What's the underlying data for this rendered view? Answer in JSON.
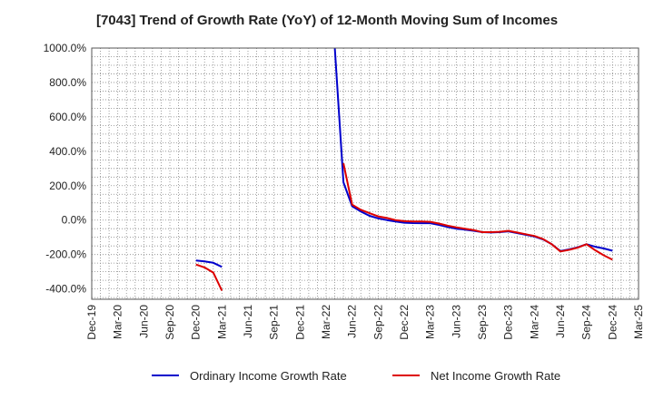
{
  "chart_data": {
    "type": "line",
    "title": "[7043]  Trend of Growth Rate (YoY) of 12-Month Moving Sum of Incomes",
    "xlabel": "",
    "ylabel": "",
    "ylim": [
      -460,
      1000
    ],
    "xlim": [
      "2019-12",
      "2025-03"
    ],
    "grid": true,
    "legend": "bottom",
    "x_tick_labels": [
      "Dec-19",
      "Mar-20",
      "Jun-20",
      "Sep-20",
      "Dec-20",
      "Mar-21",
      "Jun-21",
      "Sep-21",
      "Dec-21",
      "Mar-22",
      "Jun-22",
      "Sep-22",
      "Dec-22",
      "Mar-23",
      "Jun-23",
      "Sep-23",
      "Dec-23",
      "Mar-24",
      "Jun-24",
      "Sep-24",
      "Dec-24",
      "Mar-25"
    ],
    "y_tick_labels": [
      "1000.0%",
      "800.0%",
      "600.0%",
      "400.0%",
      "200.0%",
      "0.0%",
      "-200.0%",
      "-400.0%"
    ],
    "y_tick_values": [
      1000,
      800,
      600,
      400,
      200,
      0,
      -200,
      -400
    ],
    "series": [
      {
        "name": "Ordinary Income Growth Rate",
        "color": "#0000cc",
        "points": [
          [
            "2020-12",
            -235
          ],
          [
            "2021-01",
            -240
          ],
          [
            "2021-02",
            -248
          ],
          [
            "2021-03",
            -272
          ],
          null,
          [
            "2022-04",
            1000
          ],
          [
            "2022-05",
            220
          ],
          [
            "2022-06",
            80
          ],
          [
            "2022-07",
            50
          ],
          [
            "2022-08",
            25
          ],
          [
            "2022-09",
            10
          ],
          [
            "2022-10",
            0
          ],
          [
            "2022-11",
            -8
          ],
          [
            "2022-12",
            -15
          ],
          [
            "2023-01",
            -17
          ],
          [
            "2023-02",
            -18
          ],
          [
            "2023-03",
            -18
          ],
          [
            "2023-04",
            -28
          ],
          [
            "2023-05",
            -40
          ],
          [
            "2023-06",
            -50
          ],
          [
            "2023-07",
            -55
          ],
          [
            "2023-08",
            -62
          ],
          [
            "2023-09",
            -70
          ],
          [
            "2023-10",
            -72
          ],
          [
            "2023-11",
            -70
          ],
          [
            "2023-12",
            -65
          ],
          [
            "2024-01",
            -75
          ],
          [
            "2024-02",
            -85
          ],
          [
            "2024-03",
            -95
          ],
          [
            "2024-04",
            -112
          ],
          [
            "2024-05",
            -140
          ],
          [
            "2024-06",
            -180
          ],
          [
            "2024-07",
            -170
          ],
          [
            "2024-08",
            -158
          ],
          [
            "2024-09",
            -140
          ],
          [
            "2024-10",
            -155
          ],
          [
            "2024-11",
            -165
          ],
          [
            "2024-12",
            -178
          ]
        ]
      },
      {
        "name": "Net Income Growth Rate",
        "color": "#dd0000",
        "points": [
          [
            "2020-12",
            -258
          ],
          [
            "2021-01",
            -275
          ],
          [
            "2021-02",
            -305
          ],
          [
            "2021-03",
            -410
          ],
          null,
          [
            "2022-05",
            330
          ],
          [
            "2022-06",
            90
          ],
          [
            "2022-07",
            60
          ],
          [
            "2022-08",
            40
          ],
          [
            "2022-09",
            22
          ],
          [
            "2022-10",
            12
          ],
          [
            "2022-11",
            0
          ],
          [
            "2022-12",
            -6
          ],
          [
            "2023-01",
            -8
          ],
          [
            "2023-02",
            -8
          ],
          [
            "2023-03",
            -10
          ],
          [
            "2023-04",
            -20
          ],
          [
            "2023-05",
            -32
          ],
          [
            "2023-06",
            -42
          ],
          [
            "2023-07",
            -50
          ],
          [
            "2023-08",
            -58
          ],
          [
            "2023-09",
            -70
          ],
          [
            "2023-10",
            -70
          ],
          [
            "2023-11",
            -68
          ],
          [
            "2023-12",
            -62
          ],
          [
            "2024-01",
            -72
          ],
          [
            "2024-02",
            -82
          ],
          [
            "2024-03",
            -92
          ],
          [
            "2024-04",
            -110
          ],
          [
            "2024-05",
            -140
          ],
          [
            "2024-06",
            -182
          ],
          [
            "2024-07",
            -173
          ],
          [
            "2024-08",
            -160
          ],
          [
            "2024-09",
            -140
          ],
          [
            "2024-10",
            -175
          ],
          [
            "2024-11",
            -205
          ],
          [
            "2024-12",
            -230
          ]
        ]
      }
    ]
  }
}
